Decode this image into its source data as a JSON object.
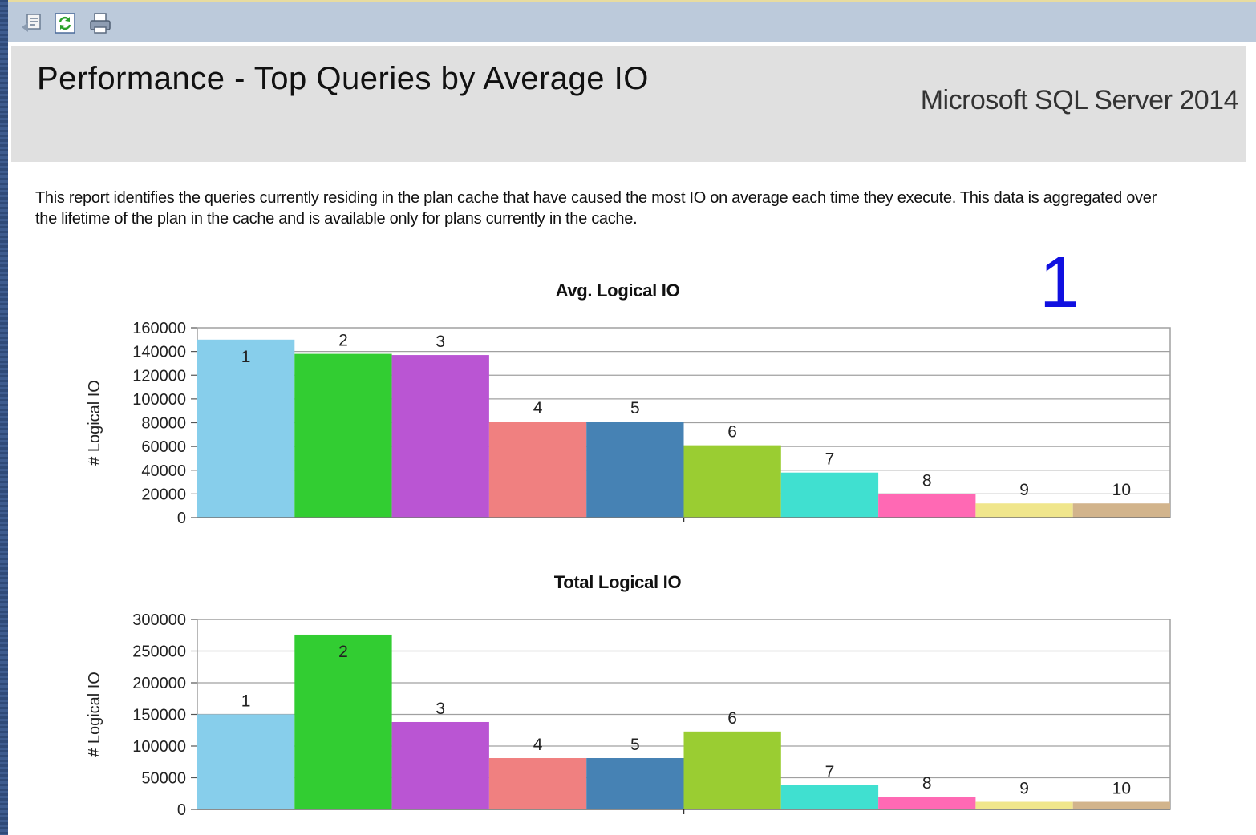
{
  "toolbar": {
    "icons": [
      "document-map-icon",
      "refresh-icon",
      "print-icon"
    ]
  },
  "header": {
    "title": "Performance - Top Queries by Average IO",
    "product": "Microsoft SQL Server 2014"
  },
  "description": "This report identifies the queries currently residing in the plan cache that have caused the most IO on average each time they execute.  This data is aggregated over the lifetime of the plan in the cache and is available only for plans currently in the cache.",
  "page_number": "1",
  "colors": [
    "#87ceeb",
    "#32cd32",
    "#ba55d3",
    "#f08080",
    "#4682b4",
    "#9acd32",
    "#40e0d0",
    "#ff69b4",
    "#f0e68c",
    "#d2b48c"
  ],
  "chart_data": [
    {
      "type": "bar",
      "title": "Avg. Logical IO",
      "ylabel": "# Logical IO",
      "xlabel": "",
      "categories": [
        "1",
        "2",
        "3",
        "4",
        "5",
        "6",
        "7",
        "8",
        "9",
        "10"
      ],
      "values": [
        150000,
        138000,
        137000,
        81000,
        81000,
        61000,
        38000,
        20000,
        12000,
        12000
      ],
      "ylim": [
        0,
        160000
      ],
      "yticks": [
        "160000",
        "140000",
        "120000",
        "100000",
        "80000",
        "60000",
        "40000",
        "20000",
        "0"
      ],
      "grid": true,
      "legend": "none"
    },
    {
      "type": "bar",
      "title": "Total Logical IO",
      "ylabel": "# Logical IO",
      "xlabel": "",
      "categories": [
        "1",
        "2",
        "3",
        "4",
        "5",
        "6",
        "7",
        "8",
        "9",
        "10"
      ],
      "values": [
        150000,
        276000,
        138000,
        81000,
        81000,
        123000,
        38000,
        20000,
        12000,
        12000
      ],
      "ylim": [
        0,
        300000
      ],
      "yticks": [
        "300000",
        "250000",
        "200000",
        "150000",
        "100000",
        "50000",
        "0"
      ],
      "grid": true,
      "legend": "none"
    }
  ]
}
